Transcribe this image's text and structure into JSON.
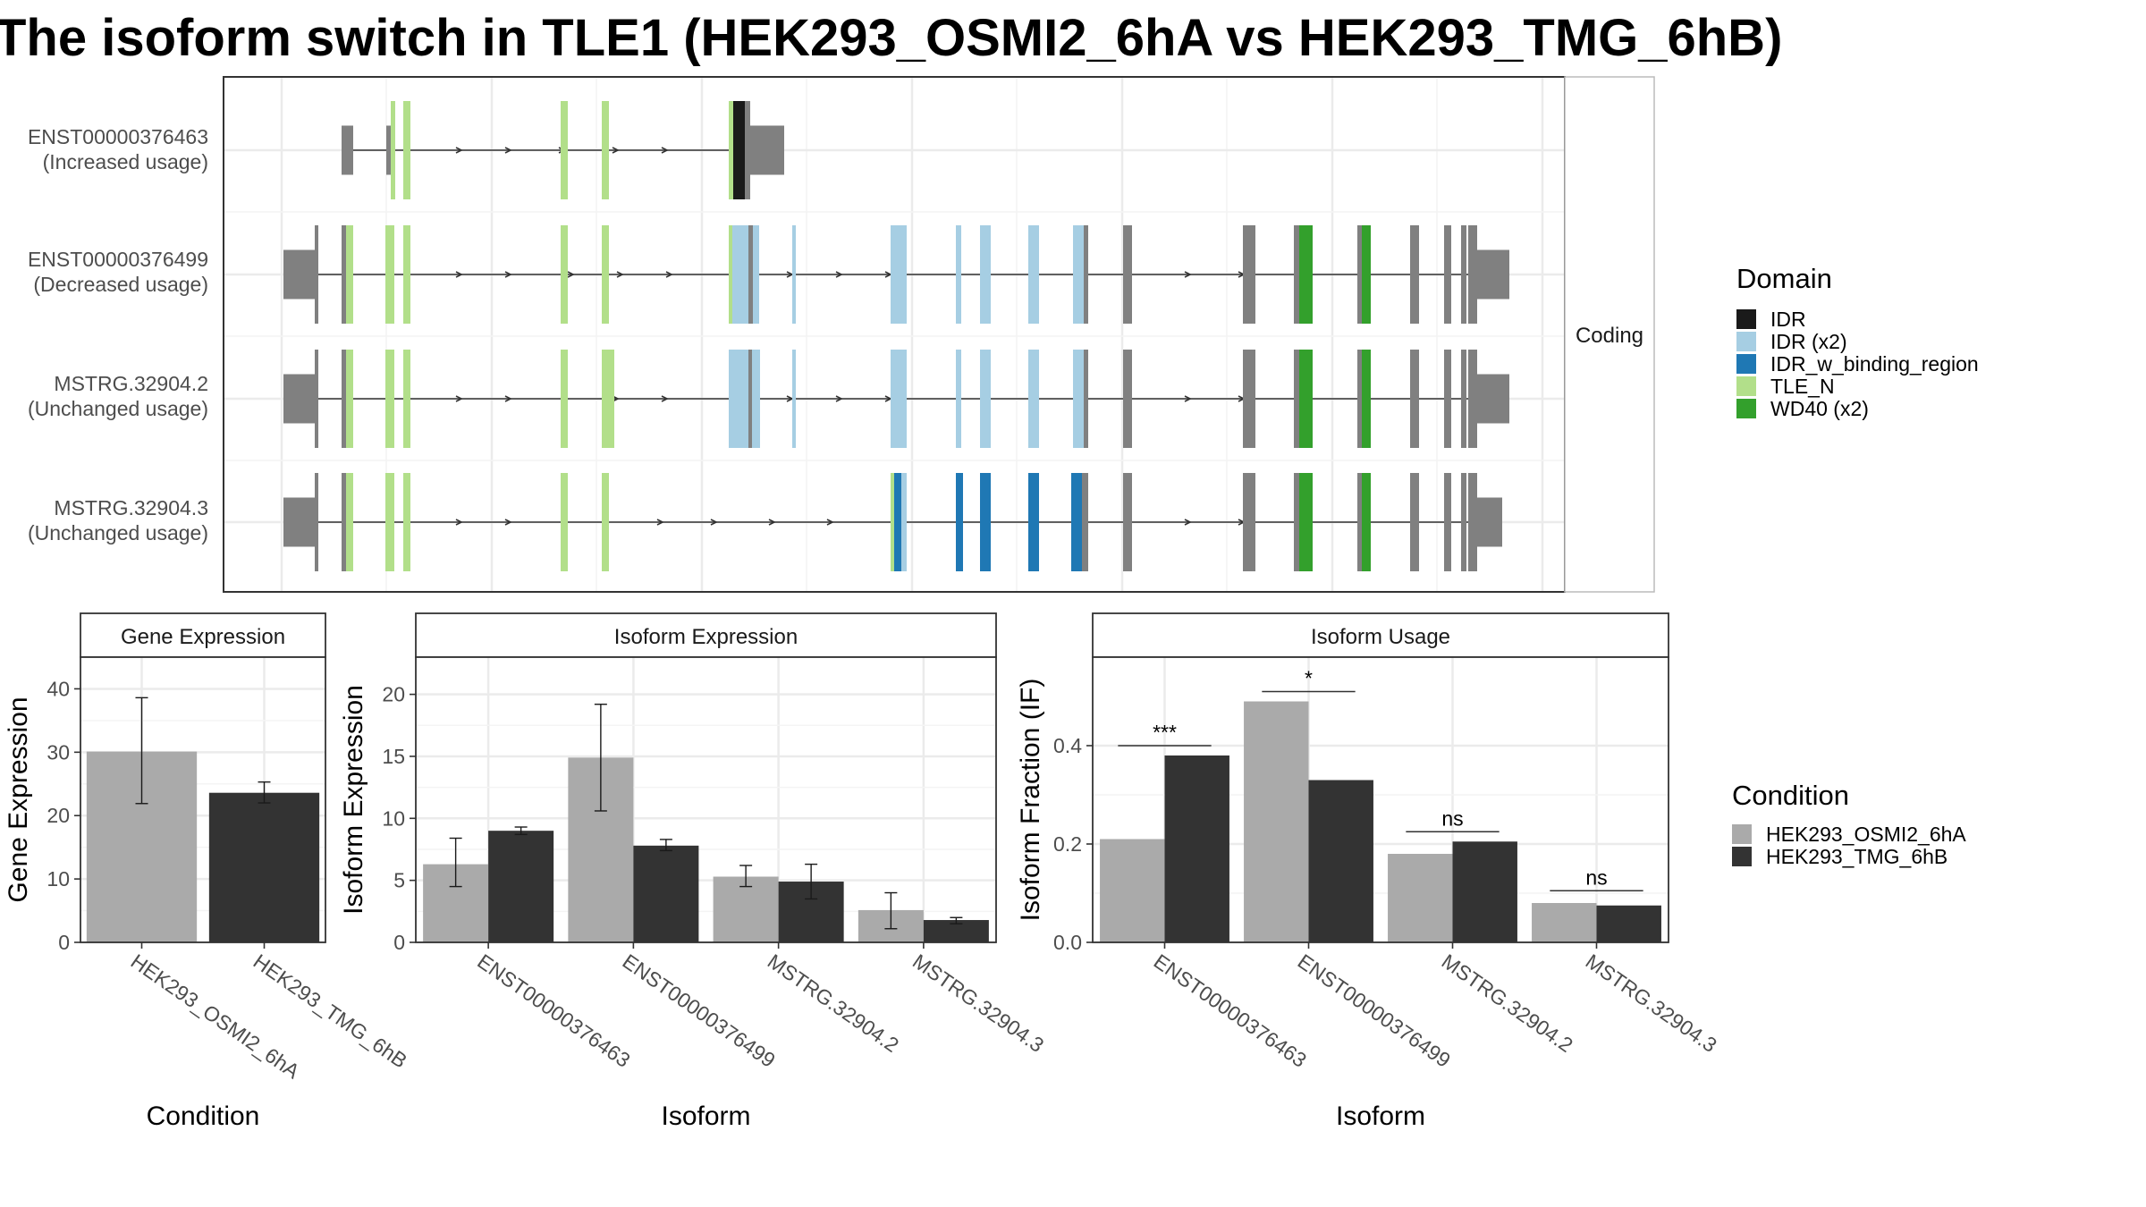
{
  "title": "The isoform switch in TLE1 (HEK293_OSMI2_6hA vs HEK293_TMG_6hB)",
  "colors": {
    "IDR": "#1a1a1a",
    "IDR (x2)": "#a6cee3",
    "IDR_w_binding_region": "#1f78b4",
    "TLE_N": "#b2df8a",
    "WD40 (x2)": "#33a02c",
    "exon": "#808080",
    "condition_a": "#aaaaaa",
    "condition_b": "#333333"
  },
  "structure": {
    "facet_label": "Coding",
    "transcripts": [
      {
        "id": "ENST00000376463",
        "usage": "(Increased usage)"
      },
      {
        "id": "ENST00000376499",
        "usage": "(Decreased usage)"
      },
      {
        "id": "MSTRG.32904.2",
        "usage": "(Unchanged usage)"
      },
      {
        "id": "MSTRG.32904.3",
        "usage": "(Unchanged usage)"
      }
    ]
  },
  "domain_legend": {
    "title": "Domain",
    "items": [
      "IDR",
      "IDR (x2)",
      "IDR_w_binding_region",
      "TLE_N",
      "WD40 (x2)"
    ]
  },
  "condition_legend": {
    "title": "Condition",
    "items": [
      "HEK293_OSMI2_6hA",
      "HEK293_TMG_6hB"
    ]
  },
  "chart_data": [
    {
      "type": "bar",
      "strip": "Gene Expression",
      "xlabel": "Condition",
      "ylabel": "Gene Expression",
      "ylim": [
        0,
        45
      ],
      "yticks": [
        0,
        10,
        20,
        30,
        40
      ],
      "categories": [
        "HEK293_OSMI2_6hA",
        "HEK293_TMG_6hB"
      ],
      "values": [
        30.1,
        23.6
      ],
      "error_low": [
        21.9,
        22.0
      ],
      "error_high": [
        38.6,
        25.3
      ]
    },
    {
      "type": "bar",
      "strip": "Isoform Expression",
      "xlabel": "Isoform",
      "ylabel": "Isoform Expression",
      "ylim": [
        0,
        23
      ],
      "yticks": [
        0,
        5,
        10,
        15,
        20
      ],
      "categories": [
        "ENST00000376463",
        "ENST00000376499",
        "MSTRG.32904.2",
        "MSTRG.32904.3"
      ],
      "series": [
        {
          "name": "HEK293_OSMI2_6hA",
          "values": [
            6.3,
            14.9,
            5.3,
            2.6
          ],
          "error_low": [
            4.5,
            10.6,
            4.5,
            1.1
          ],
          "error_high": [
            8.4,
            19.2,
            6.2,
            4.0
          ]
        },
        {
          "name": "HEK293_TMG_6hB",
          "values": [
            9.0,
            7.8,
            4.9,
            1.8
          ],
          "error_low": [
            8.7,
            7.4,
            3.5,
            1.5
          ],
          "error_high": [
            9.3,
            8.3,
            6.3,
            2.0
          ]
        }
      ]
    },
    {
      "type": "bar",
      "strip": "Isoform Usage",
      "xlabel": "Isoform",
      "ylabel": "Isoform Fraction (IF)",
      "ylim": [
        0,
        0.58
      ],
      "yticks": [
        0.0,
        0.2,
        0.4
      ],
      "ytick_labels": [
        "0.0",
        "0.2",
        "0.4"
      ],
      "categories": [
        "ENST00000376463",
        "ENST00000376499",
        "MSTRG.32904.2",
        "MSTRG.32904.3"
      ],
      "series": [
        {
          "name": "HEK293_OSMI2_6hA",
          "values": [
            0.21,
            0.49,
            0.18,
            0.08
          ]
        },
        {
          "name": "HEK293_TMG_6hB",
          "values": [
            0.38,
            0.33,
            0.205,
            0.075
          ]
        }
      ],
      "significance": [
        "***",
        "*",
        "ns",
        "ns"
      ],
      "significance_levels": [
        0.4,
        0.51,
        0.225,
        0.105
      ]
    }
  ]
}
